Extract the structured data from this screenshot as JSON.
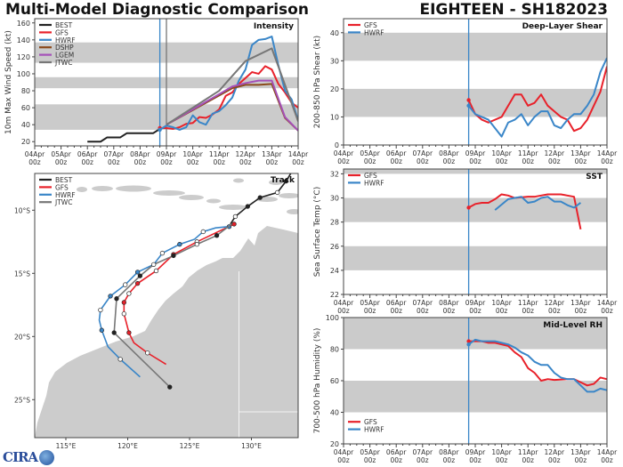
{
  "header": {
    "title": "Multi-Model Diagnostic Comparison",
    "storm": "EIGHTEEN - SH182023"
  },
  "logo": {
    "text": "CIRA"
  },
  "colors": {
    "BEST": "#222222",
    "GFS": "#e8212a",
    "HWRF": "#3a86c8",
    "DSHP": "#8b4a1c",
    "LGEM": "#a550b8",
    "JTWC": "#777777",
    "band": "#cbcbcb"
  },
  "x_ticks": [
    {
      "date": "04Apr",
      "hour": "00z"
    },
    {
      "date": "05Apr",
      "hour": "00z"
    },
    {
      "date": "06Apr",
      "hour": "00z"
    },
    {
      "date": "07Apr",
      "hour": "00z"
    },
    {
      "date": "08Apr",
      "hour": "00z"
    },
    {
      "date": "09Apr",
      "hour": "00z"
    },
    {
      "date": "10Apr",
      "hour": "00z"
    },
    {
      "date": "11Apr",
      "hour": "00z"
    },
    {
      "date": "12Apr",
      "hour": "00z"
    },
    {
      "date": "13Apr",
      "hour": "00z"
    },
    {
      "date": "14Apr",
      "hour": "00z"
    }
  ],
  "chart_data": [
    {
      "id": "intensity",
      "type": "line",
      "title": "Intensity",
      "ylabel": "10m Max Wind Speed (kt)",
      "xlim": [
        "04Apr00z",
        "14Apr00z"
      ],
      "ylim": [
        15,
        165
      ],
      "yticks": [
        20,
        40,
        60,
        80,
        100,
        120,
        140,
        160
      ],
      "bands": [
        [
          34,
          64
        ],
        [
          83,
          96
        ],
        [
          113,
          137
        ]
      ],
      "legend": "top-left",
      "vlines": [
        {
          "x": "08Apr18z",
          "color": "#3a86c8"
        },
        {
          "x": "09Apr00z",
          "color": "#777777"
        }
      ],
      "series": [
        {
          "name": "BEST",
          "x": [
            "06Apr00z",
            "06Apr12z",
            "06Apr18z",
            "07Apr06z",
            "07Apr12z",
            "08Apr12z",
            "08Apr18z"
          ],
          "y": [
            20,
            20,
            25,
            25,
            30,
            30,
            35
          ]
        },
        {
          "name": "GFS",
          "x": [
            "08Apr18z",
            "09Apr00z",
            "09Apr06z",
            "09Apr12z",
            "09Apr18z",
            "10Apr00z",
            "10Apr06z",
            "10Apr12z",
            "10Apr18z",
            "11Apr00z",
            "11Apr06z",
            "11Apr12z",
            "11Apr18z",
            "12Apr00z",
            "12Apr06z",
            "12Apr12z",
            "12Apr18z",
            "13Apr00z",
            "13Apr06z",
            "13Apr12z",
            "13Apr18z",
            "14Apr00z"
          ],
          "y": [
            36,
            36,
            35,
            37,
            41,
            42,
            49,
            48,
            52,
            58,
            74,
            78,
            88,
            95,
            102,
            100,
            109,
            105,
            88,
            78,
            66,
            60
          ]
        },
        {
          "name": "HWRF",
          "x": [
            "08Apr18z",
            "09Apr00z",
            "09Apr06z",
            "09Apr12z",
            "09Apr18z",
            "10Apr00z",
            "10Apr06z",
            "10Apr12z",
            "10Apr18z",
            "11Apr00z",
            "11Apr06z",
            "11Apr12z",
            "11Apr18z",
            "12Apr00z",
            "12Apr06z",
            "12Apr12z",
            "12Apr18z",
            "13Apr00z",
            "13Apr06z",
            "13Apr12z",
            "13Apr18z",
            "14Apr00z"
          ],
          "y": [
            34,
            39,
            37,
            34,
            37,
            51,
            43,
            40,
            53,
            56,
            63,
            72,
            92,
            105,
            134,
            140,
            141,
            144,
            110,
            80,
            70,
            45
          ]
        },
        {
          "name": "DSHP",
          "x": [
            "09Apr00z",
            "11Apr12z",
            "12Apr00z",
            "12Apr12z",
            "13Apr00z",
            "13Apr12z",
            "14Apr00z"
          ],
          "y": [
            40,
            83,
            87,
            87,
            88,
            48,
            33
          ]
        },
        {
          "name": "LGEM",
          "x": [
            "09Apr00z",
            "11Apr12z",
            "12Apr00z",
            "12Apr12z",
            "13Apr00z",
            "13Apr12z",
            "14Apr00z"
          ],
          "y": [
            40,
            85,
            89,
            92,
            92,
            49,
            33
          ]
        },
        {
          "name": "JTWC",
          "x": [
            "09Apr00z",
            "11Apr00z",
            "12Apr00z",
            "13Apr00z",
            "14Apr00z"
          ],
          "y": [
            40,
            80,
            115,
            130,
            44
          ]
        }
      ]
    },
    {
      "id": "shear",
      "type": "line",
      "title": "Deep-Layer Shear",
      "ylabel": "200-850 hPa Shear (kt)",
      "xlim": [
        "04Apr00z",
        "14Apr00z"
      ],
      "ylim": [
        0,
        45
      ],
      "yticks": [
        0,
        10,
        20,
        30,
        40
      ],
      "bands": [
        [
          10,
          20
        ],
        [
          30,
          40
        ]
      ],
      "legend": "top-left",
      "vlines": [
        {
          "x": "08Apr18z",
          "color": "#3a86c8"
        }
      ],
      "series": [
        {
          "name": "GFS",
          "x": [
            "08Apr18z",
            "09Apr00z",
            "09Apr06z",
            "09Apr12z",
            "10Apr00z",
            "10Apr12z",
            "10Apr18z",
            "11Apr00z",
            "11Apr06z",
            "11Apr12z",
            "11Apr18z",
            "12Apr00z",
            "12Apr06z",
            "12Apr12z",
            "12Apr18z",
            "13Apr00z",
            "13Apr06z",
            "13Apr12z",
            "13Apr18z",
            "14Apr00z"
          ],
          "y": [
            16,
            11,
            9,
            8,
            10,
            18,
            18,
            14,
            15,
            18,
            14,
            12,
            10,
            9,
            5,
            6,
            9,
            14,
            19,
            28
          ]
        },
        {
          "name": "HWRF",
          "x": [
            "08Apr18z",
            "09Apr00z",
            "09Apr12z",
            "10Apr00z",
            "10Apr06z",
            "10Apr12z",
            "10Apr18z",
            "11Apr00z",
            "11Apr06z",
            "11Apr12z",
            "11Apr18z",
            "12Apr00z",
            "12Apr06z",
            "12Apr12z",
            "12Apr18z",
            "13Apr00z",
            "13Apr06z",
            "13Apr12z",
            "13Apr18z",
            "14Apr00z"
          ],
          "y": [
            14,
            11,
            9,
            3,
            8,
            9,
            11,
            7,
            10,
            12,
            12,
            7,
            6,
            9,
            11,
            11,
            14,
            18,
            26,
            31
          ]
        }
      ]
    },
    {
      "id": "sst",
      "type": "line",
      "title": "SST",
      "ylabel": "Sea Surface Temp (°C)",
      "xlim": [
        "04Apr00z",
        "14Apr00z"
      ],
      "ylim": [
        22,
        32.4
      ],
      "yticks": [
        22,
        24,
        26,
        28,
        30,
        32
      ],
      "bands": [
        [
          24,
          26
        ],
        [
          28,
          30
        ],
        [
          32,
          34
        ]
      ],
      "legend": "top-left",
      "vlines": [
        {
          "x": "08Apr18z",
          "color": "#3a86c8"
        }
      ],
      "series": [
        {
          "name": "GFS",
          "x": [
            "08Apr18z",
            "09Apr00z",
            "09Apr06z",
            "09Apr12z",
            "09Apr18z",
            "10Apr00z",
            "10Apr06z",
            "10Apr12z",
            "11Apr00z",
            "11Apr06z",
            "11Apr12z",
            "11Apr18z",
            "12Apr06z",
            "12Apr18z",
            "13Apr00z"
          ],
          "y": [
            29.2,
            29.5,
            29.6,
            29.6,
            29.9,
            30.3,
            30.2,
            30.0,
            30.1,
            30.1,
            30.2,
            30.3,
            30.3,
            30.1,
            27.4
          ]
        },
        {
          "name": "HWRF",
          "x": [
            "09Apr18z",
            "10Apr06z",
            "10Apr12z",
            "10Apr18z",
            "11Apr00z",
            "11Apr06z",
            "11Apr12z",
            "11Apr18z",
            "12Apr00z",
            "12Apr06z",
            "12Apr12z",
            "12Apr18z",
            "13Apr00z"
          ],
          "y": [
            29.0,
            29.9,
            30.0,
            30.1,
            29.6,
            29.7,
            30.0,
            30.1,
            29.7,
            29.7,
            29.4,
            29.2,
            29.6
          ]
        }
      ]
    },
    {
      "id": "rh",
      "type": "line",
      "title": "Mid-Level RH",
      "ylabel": "700-500 hPa Humidity (%)",
      "xlim": [
        "04Apr00z",
        "14Apr00z"
      ],
      "ylim": [
        20,
        100
      ],
      "yticks": [
        20,
        40,
        60,
        80,
        100
      ],
      "bands": [
        [
          40,
          60
        ],
        [
          80,
          100
        ]
      ],
      "legend": "bottom-left",
      "vlines": [
        {
          "x": "08Apr18z",
          "color": "#3a86c8"
        }
      ],
      "series": [
        {
          "name": "GFS",
          "x": [
            "08Apr18z",
            "09Apr00z",
            "09Apr06z",
            "09Apr12z",
            "09Apr18z",
            "10Apr00z",
            "10Apr06z",
            "10Apr12z",
            "10Apr18z",
            "11Apr00z",
            "11Apr06z",
            "11Apr12z",
            "11Apr18z",
            "12Apr00z",
            "12Apr12z",
            "12Apr18z",
            "13Apr00z",
            "13Apr06z",
            "13Apr12z",
            "13Apr18z",
            "14Apr00z"
          ],
          "y": [
            85,
            85,
            85,
            84,
            84,
            83,
            82,
            78,
            75,
            68,
            65,
            60,
            61,
            60.5,
            61,
            61,
            59,
            57,
            58,
            62,
            61
          ]
        },
        {
          "name": "HWRF",
          "x": [
            "08Apr18z",
            "09Apr00z",
            "09Apr06z",
            "09Apr12z",
            "09Apr18z",
            "10Apr00z",
            "10Apr06z",
            "10Apr12z",
            "10Apr18z",
            "11Apr00z",
            "11Apr06z",
            "11Apr12z",
            "11Apr18z",
            "12Apr00z",
            "12Apr06z",
            "12Apr12z",
            "12Apr18z",
            "13Apr00z",
            "13Apr06z",
            "13Apr12z",
            "13Apr18z",
            "14Apr00z"
          ],
          "y": [
            83,
            86,
            85,
            85,
            85,
            84,
            83,
            81,
            78,
            76,
            72,
            70,
            70,
            65,
            62,
            61,
            61,
            57,
            53,
            53,
            55,
            54
          ]
        }
      ]
    },
    {
      "id": "track",
      "type": "map",
      "title": "Track",
      "legend": "top-left",
      "lon_ticks": [
        "115°E",
        "120°E",
        "125°E",
        "130°E"
      ],
      "lat_ticks": [
        "10°S",
        "15°S",
        "20°S",
        "25°S"
      ],
      "tracks": [
        {
          "name": "BEST",
          "points": [
            [
              133.3,
              -6.9,
              "none"
            ],
            [
              132.8,
              -7.7,
              "filled"
            ],
            [
              132.1,
              -8.6,
              "open"
            ],
            [
              130.7,
              -9.0,
              "filled"
            ],
            [
              129.7,
              -9.7,
              "filled"
            ],
            [
              128.7,
              -10.5,
              "open"
            ],
            [
              128.3,
              -11.1,
              "none"
            ]
          ]
        },
        {
          "name": "GFS",
          "points": [
            [
              128.6,
              -11.1,
              "filled"
            ],
            [
              125.6,
              -12.5,
              "open"
            ],
            [
              123.7,
              -13.5,
              "filled"
            ],
            [
              122.3,
              -14.8,
              "open"
            ],
            [
              120.8,
              -15.8,
              "filled"
            ],
            [
              120.1,
              -16.6,
              "open"
            ],
            [
              119.7,
              -17.3,
              "filled"
            ],
            [
              119.7,
              -18.2,
              "open"
            ],
            [
              120.1,
              -19.7,
              "filled"
            ],
            [
              120.5,
              -20.5,
              "none"
            ],
            [
              121.6,
              -21.3,
              "open"
            ],
            [
              123.1,
              -22.2,
              "none"
            ]
          ]
        },
        {
          "name": "HWRF",
          "points": [
            [
              128.2,
              -11.3,
              "filled"
            ],
            [
              127.1,
              -11.4,
              "none"
            ],
            [
              126.1,
              -11.7,
              "open"
            ],
            [
              125.4,
              -12.3,
              "none"
            ],
            [
              124.2,
              -12.7,
              "filled"
            ],
            [
              122.8,
              -13.4,
              "open"
            ],
            [
              122.1,
              -14.3,
              "none"
            ],
            [
              120.8,
              -14.9,
              "filled"
            ],
            [
              119.8,
              -15.9,
              "open"
            ],
            [
              118.6,
              -16.8,
              "filled"
            ],
            [
              117.8,
              -17.9,
              "open"
            ],
            [
              117.7,
              -18.7,
              "none"
            ],
            [
              117.9,
              -19.5,
              "filled"
            ],
            [
              118.4,
              -20.8,
              "none"
            ],
            [
              119.4,
              -21.8,
              "open"
            ],
            [
              121.0,
              -23.2,
              "none"
            ]
          ]
        },
        {
          "name": "JTWC",
          "points": [
            [
              128.4,
              -11.1,
              "none"
            ],
            [
              127.2,
              -12.0,
              "filled"
            ],
            [
              125.6,
              -12.7,
              "open"
            ],
            [
              123.7,
              -13.6,
              "filled"
            ],
            [
              122.1,
              -14.3,
              "open"
            ],
            [
              121.0,
              -15.2,
              "filled"
            ],
            [
              119.1,
              -17.0,
              "filled"
            ],
            [
              118.9,
              -19.7,
              "filled"
            ],
            [
              123.4,
              -24.0,
              "filled"
            ]
          ]
        }
      ]
    }
  ]
}
